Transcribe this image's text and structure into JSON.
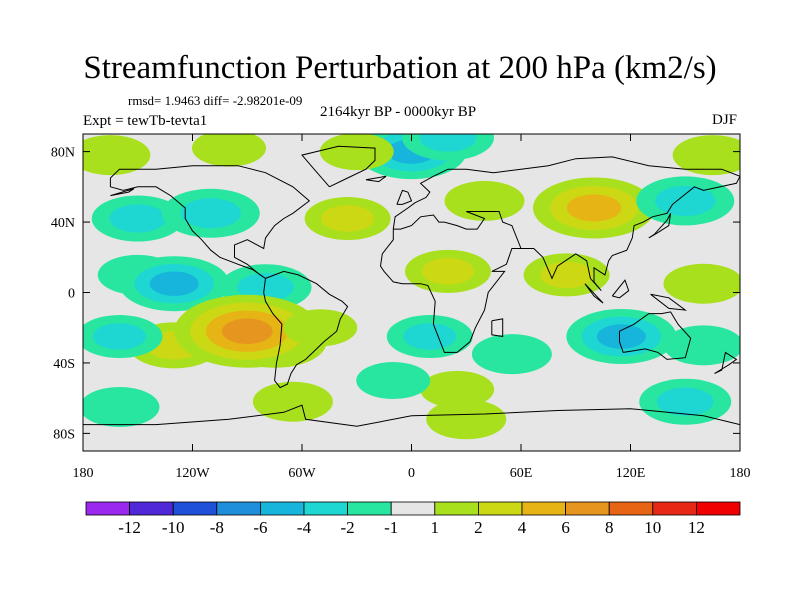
{
  "title": "Streamfunction Perturbation at 200 hPa (km2/s)",
  "stats_text": "rmsd= 1.9463 diff= -2.98201e-09",
  "period": "2164kyr BP - 0000kyr BP",
  "experiment": "Expt = tewTb-tevta1",
  "season": "DJF",
  "map": {
    "lon_ticks": [
      {
        "lon": -180,
        "label": "180"
      },
      {
        "lon": -120,
        "label": "120W"
      },
      {
        "lon": -60,
        "label": "60W"
      },
      {
        "lon": 0,
        "label": "0"
      },
      {
        "lon": 60,
        "label": "60E"
      },
      {
        "lon": 120,
        "label": "120E"
      },
      {
        "lon": 180,
        "label": "180"
      }
    ],
    "lat_ticks": [
      {
        "lat": 80,
        "label": "80N"
      },
      {
        "lat": 40,
        "label": "40N"
      },
      {
        "lat": 0,
        "label": "0"
      },
      {
        "lat": -40,
        "label": "40S"
      },
      {
        "lat": -80,
        "label": "80S"
      }
    ],
    "features": [
      {
        "lon": 0,
        "lat": 80,
        "value": -4.5
      },
      {
        "lon": 20,
        "lat": 88,
        "value": -3
      },
      {
        "lon": 165,
        "lat": 78,
        "value": 2
      },
      {
        "lon": -165,
        "lat": 78,
        "value": 2
      },
      {
        "lon": -30,
        "lat": 80,
        "value": 1.5
      },
      {
        "lon": -100,
        "lat": 82,
        "value": 1.5
      },
      {
        "lon": -150,
        "lat": 42,
        "value": -3
      },
      {
        "lon": -110,
        "lat": 45,
        "value": -3.5
      },
      {
        "lon": -35,
        "lat": 42,
        "value": 2.5
      },
      {
        "lon": 100,
        "lat": 48,
        "value": 5.5
      },
      {
        "lon": 150,
        "lat": 52,
        "value": -3.5
      },
      {
        "lon": 40,
        "lat": 52,
        "value": 2
      },
      {
        "lon": -150,
        "lat": 10,
        "value": -2
      },
      {
        "lon": -130,
        "lat": 5,
        "value": -4.5
      },
      {
        "lon": -80,
        "lat": 3,
        "value": -3
      },
      {
        "lon": 20,
        "lat": 12,
        "value": 2.5
      },
      {
        "lon": 85,
        "lat": 10,
        "value": 2.5
      },
      {
        "lon": 160,
        "lat": 5,
        "value": 2
      },
      {
        "lon": -130,
        "lat": -30,
        "value": 3
      },
      {
        "lon": -75,
        "lat": -28,
        "value": 4
      },
      {
        "lon": -90,
        "lat": -22,
        "value": 7.5
      },
      {
        "lon": -50,
        "lat": -20,
        "value": 1.5
      },
      {
        "lon": 10,
        "lat": -25,
        "value": -2.5
      },
      {
        "lon": 55,
        "lat": -35,
        "value": -2
      },
      {
        "lon": 115,
        "lat": -25,
        "value": -4.5
      },
      {
        "lon": 160,
        "lat": -30,
        "value": -2
      },
      {
        "lon": -160,
        "lat": -25,
        "value": -2.5
      },
      {
        "lon": -65,
        "lat": -62,
        "value": 2
      },
      {
        "lon": 25,
        "lat": -55,
        "value": 1.5
      },
      {
        "lon": 30,
        "lat": -72,
        "value": 2
      },
      {
        "lon": 150,
        "lat": -62,
        "value": -3
      },
      {
        "lon": -160,
        "lat": -65,
        "value": -2
      },
      {
        "lon": -10,
        "lat": -50,
        "value": -1.5
      }
    ]
  },
  "colorbar": {
    "levels": [
      "-12",
      "-10",
      "-8",
      "-6",
      "-4",
      "-2",
      "-1",
      "1",
      "2",
      "4",
      "6",
      "8",
      "10",
      "12"
    ],
    "colors": [
      "#9a28ee",
      "#5028d8",
      "#1e50d8",
      "#1f8fdc",
      "#17b4dc",
      "#1ed7d2",
      "#28e6a0",
      "#e6e6e6",
      "#a8e01e",
      "#cdd814",
      "#e6b414",
      "#e6961e",
      "#e66414",
      "#e62814",
      "#f00000"
    ]
  }
}
